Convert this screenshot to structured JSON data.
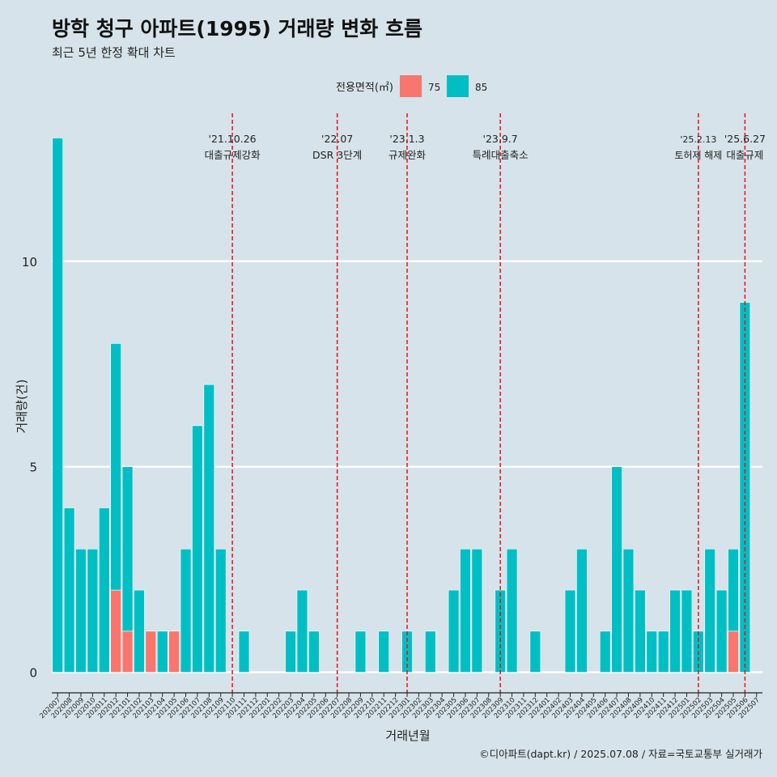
{
  "title": "방학 청구 아파트(1995) 거래량 변화 흐름",
  "subtitle": "최근 5년 한정 확대 차트",
  "caption": "©디아파트(dapt.kr) / 2025.07.08 / 자료=국토교통부 실거래가",
  "chart_data": {
    "type": "bar",
    "xlabel": "거래년월",
    "ylabel": "거래량(건)",
    "ylim": [
      -0.5,
      13.6
    ],
    "yticks": [
      0,
      5,
      10
    ],
    "grid": true,
    "legend": {
      "title": "전용면적(㎡)",
      "position": "top",
      "entries": [
        {
          "name": "75",
          "color": "#f8766d"
        },
        {
          "name": "85",
          "color": "#00bfc4"
        }
      ]
    },
    "categories": [
      "202007",
      "202008",
      "202009",
      "202010",
      "202011",
      "202012",
      "202101",
      "202102",
      "202103",
      "202104",
      "202105",
      "202106",
      "202107",
      "202108",
      "202109",
      "202110",
      "202111",
      "202112",
      "202201",
      "202202",
      "202203",
      "202204",
      "202205",
      "202206",
      "202207",
      "202208",
      "202209",
      "202210",
      "202211",
      "202212",
      "202301",
      "202302",
      "202303",
      "202304",
      "202305",
      "202306",
      "202307",
      "202308",
      "202309",
      "202310",
      "202311",
      "202312",
      "202401",
      "202402",
      "202403",
      "202404",
      "202405",
      "202406",
      "202407",
      "202408",
      "202409",
      "202410",
      "202411",
      "202412",
      "202501",
      "202502",
      "202503",
      "202504",
      "202505",
      "202506",
      "202507"
    ],
    "series": [
      {
        "name": "75",
        "color": "#f8766d",
        "values": [
          0,
          0,
          0,
          0,
          0,
          2,
          1,
          0,
          1,
          0,
          1,
          0,
          0,
          0,
          0,
          0,
          0,
          0,
          0,
          0,
          0,
          0,
          0,
          0,
          0,
          0,
          0,
          0,
          0,
          0,
          0,
          0,
          0,
          0,
          0,
          0,
          0,
          0,
          0,
          0,
          0,
          0,
          0,
          0,
          0,
          0,
          0,
          0,
          0,
          0,
          0,
          0,
          0,
          0,
          0,
          0,
          0,
          0,
          1,
          0,
          0
        ]
      },
      {
        "name": "85",
        "color": "#00bfc4",
        "values": [
          13,
          4,
          3,
          3,
          4,
          6,
          4,
          2,
          0,
          1,
          0,
          3,
          6,
          7,
          3,
          0,
          1,
          0,
          0,
          0,
          1,
          2,
          1,
          0,
          0,
          0,
          1,
          0,
          1,
          0,
          1,
          0,
          1,
          0,
          2,
          3,
          3,
          0,
          2,
          3,
          0,
          1,
          0,
          0,
          2,
          3,
          0,
          1,
          5,
          3,
          2,
          1,
          1,
          2,
          2,
          1,
          3,
          2,
          2,
          9,
          0
        ]
      }
    ],
    "events": [
      {
        "date": "'21.10.26",
        "label": "대출규제강화",
        "index": 15
      },
      {
        "date": "'22.07",
        "label": "DSR 3단계",
        "index": 24
      },
      {
        "date": "'23.1.3",
        "label": "규제완화",
        "index": 30
      },
      {
        "date": "'23.9.7",
        "label": "특례대출축소",
        "index": 38
      },
      {
        "date": "'25.2.13",
        "label": "토허제 해제",
        "index": 55
      },
      {
        "date": "'25.6.27",
        "label": "대출규제",
        "index": 59
      }
    ]
  }
}
